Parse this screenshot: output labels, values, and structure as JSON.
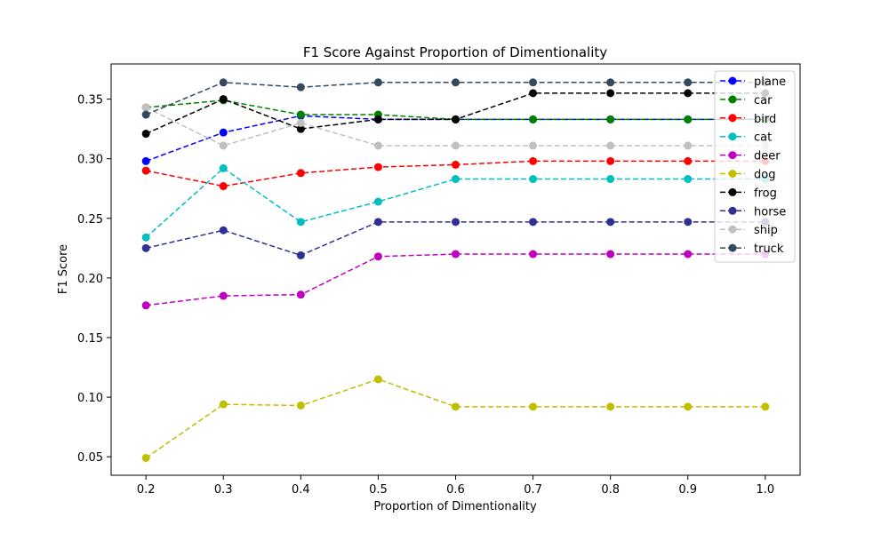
{
  "chart_data": {
    "type": "line",
    "title": "F1 Score Against Proportion of Dimentionality",
    "xlabel": "Proportion of Dimentionality",
    "ylabel": "F1 Score",
    "x": [
      0.2,
      0.3,
      0.4,
      0.5,
      0.6,
      0.7,
      0.8,
      0.9,
      1.0
    ],
    "x_tick_labels": [
      "0.2",
      "0.3",
      "0.4",
      "0.5",
      "0.6",
      "0.7",
      "0.8",
      "0.9",
      "1.0"
    ],
    "y_ticks": [
      0.05,
      0.1,
      0.15,
      0.2,
      0.25,
      0.3,
      0.35
    ],
    "y_tick_labels": [
      "0.05",
      "0.10",
      "0.15",
      "0.20",
      "0.25",
      "0.30",
      "0.35"
    ],
    "xlim": [
      0.155,
      1.045
    ],
    "ylim": [
      0.0345,
      0.3795
    ],
    "grid": false,
    "legend_position": "top-right",
    "line_style": "dashed",
    "marker": "circle",
    "series": [
      {
        "name": "plane",
        "color": "#0000ff",
        "values": [
          0.298,
          0.322,
          0.336,
          0.333,
          0.333,
          0.333,
          0.333,
          0.333,
          0.333
        ]
      },
      {
        "name": "car",
        "color": "#008000",
        "values": [
          0.343,
          0.349,
          0.337,
          0.337,
          0.333,
          0.333,
          0.333,
          0.333,
          0.333
        ]
      },
      {
        "name": "bird",
        "color": "#ff0000",
        "values": [
          0.29,
          0.277,
          0.288,
          0.293,
          0.295,
          0.298,
          0.298,
          0.298,
          0.298
        ]
      },
      {
        "name": "cat",
        "color": "#00bfbf",
        "values": [
          0.234,
          0.292,
          0.247,
          0.264,
          0.283,
          0.283,
          0.283,
          0.283,
          0.283
        ]
      },
      {
        "name": "deer",
        "color": "#bf00bf",
        "values": [
          0.177,
          0.185,
          0.186,
          0.218,
          0.22,
          0.22,
          0.22,
          0.22,
          0.22
        ]
      },
      {
        "name": "dog",
        "color": "#bfbf00",
        "values": [
          0.049,
          0.094,
          0.093,
          0.115,
          0.092,
          0.092,
          0.092,
          0.092,
          0.092
        ]
      },
      {
        "name": "frog",
        "color": "#000000",
        "values": [
          0.321,
          0.35,
          0.325,
          0.333,
          0.333,
          0.355,
          0.355,
          0.355,
          0.355
        ]
      },
      {
        "name": "horse",
        "color": "#2e3192",
        "values": [
          0.225,
          0.24,
          0.219,
          0.247,
          0.247,
          0.247,
          0.247,
          0.247,
          0.247
        ]
      },
      {
        "name": "ship",
        "color": "#c0c0c0",
        "values": [
          0.343,
          0.311,
          0.33,
          0.311,
          0.311,
          0.311,
          0.311,
          0.311,
          0.311
        ]
      },
      {
        "name": "truck",
        "color": "#34495e",
        "values": [
          0.337,
          0.364,
          0.36,
          0.364,
          0.364,
          0.364,
          0.364,
          0.364,
          0.364
        ]
      }
    ]
  }
}
